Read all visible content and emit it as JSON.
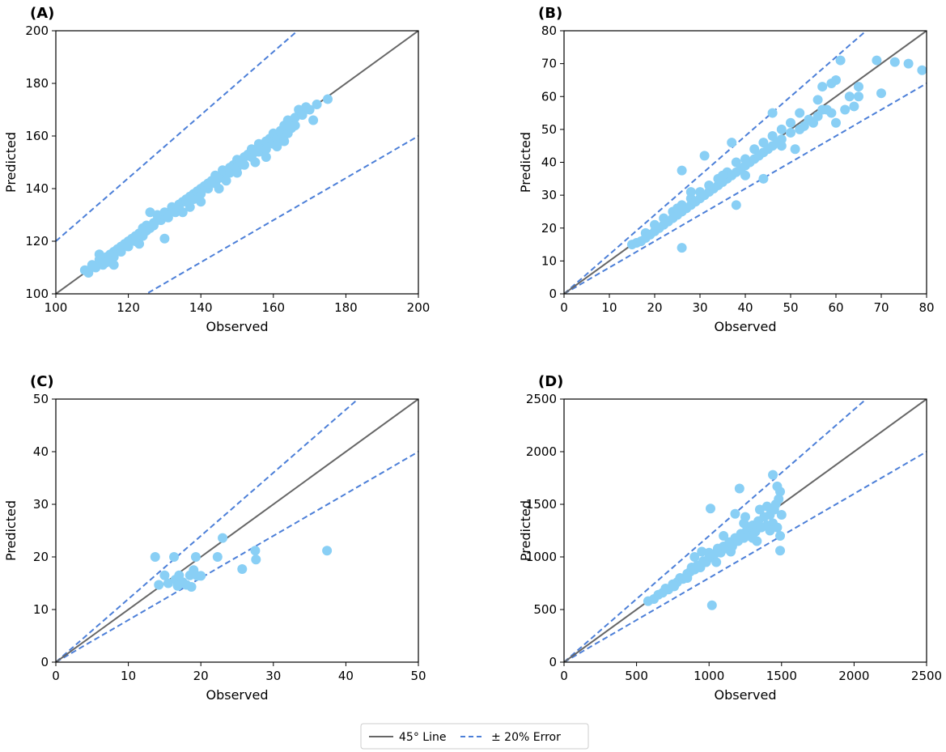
{
  "style": {
    "point_color": "#89CFF5",
    "identity_line_color": "#666666",
    "error_line_color": "#4C7FD8"
  },
  "legend": {
    "placement": "bottom-center",
    "items": [
      {
        "label": "45° Line",
        "style": "solid"
      },
      {
        "label": "± 20% Error",
        "style": "dashed"
      }
    ]
  },
  "chart_data": [
    {
      "type": "scatter",
      "panel_label": "(A)",
      "xlabel": "Observed",
      "ylabel": "Predicted",
      "xlim": [
        100,
        200
      ],
      "ylim": [
        100,
        200
      ],
      "xticks": [
        100,
        120,
        140,
        160,
        180,
        200
      ],
      "yticks": [
        100,
        120,
        140,
        160,
        180,
        200
      ],
      "reference_lines": {
        "identity_slope": 1,
        "upper_error_slope": 1.2,
        "lower_error_slope": 0.8
      },
      "points": [
        [
          108,
          109
        ],
        [
          109,
          108
        ],
        [
          110,
          111
        ],
        [
          111,
          110
        ],
        [
          112,
          113
        ],
        [
          113,
          111
        ],
        [
          114,
          114
        ],
        [
          114,
          112
        ],
        [
          115,
          115
        ],
        [
          116,
          114
        ],
        [
          116,
          116
        ],
        [
          117,
          117
        ],
        [
          118,
          116
        ],
        [
          118,
          118
        ],
        [
          119,
          119
        ],
        [
          120,
          118
        ],
        [
          120,
          120
        ],
        [
          121,
          121
        ],
        [
          122,
          120
        ],
        [
          122,
          122
        ],
        [
          123,
          123
        ],
        [
          124,
          122
        ],
        [
          124,
          125
        ],
        [
          125,
          124
        ],
        [
          125,
          126
        ],
        [
          126,
          125
        ],
        [
          127,
          127
        ],
        [
          127,
          126
        ],
        [
          128,
          128
        ],
        [
          128,
          130
        ],
        [
          129,
          128
        ],
        [
          130,
          130
        ],
        [
          130,
          131
        ],
        [
          131,
          129
        ],
        [
          132,
          132
        ],
        [
          132,
          133
        ],
        [
          133,
          131
        ],
        [
          134,
          134
        ],
        [
          134,
          133
        ],
        [
          135,
          135
        ],
        [
          136,
          135
        ],
        [
          136,
          136
        ],
        [
          137,
          137
        ],
        [
          138,
          136
        ],
        [
          138,
          138
        ],
        [
          139,
          139
        ],
        [
          140,
          138
        ],
        [
          140,
          140
        ],
        [
          141,
          141
        ],
        [
          142,
          140
        ],
        [
          142,
          142
        ],
        [
          143,
          143
        ],
        [
          144,
          142
        ],
        [
          144,
          145
        ],
        [
          145,
          144
        ],
        [
          146,
          145
        ],
        [
          146,
          147
        ],
        [
          147,
          146
        ],
        [
          148,
          148
        ],
        [
          148,
          146
        ],
        [
          149,
          149
        ],
        [
          150,
          148
        ],
        [
          150,
          151
        ],
        [
          151,
          150
        ],
        [
          152,
          152
        ],
        [
          152,
          149
        ],
        [
          153,
          153
        ],
        [
          154,
          152
        ],
        [
          154,
          155
        ],
        [
          155,
          154
        ],
        [
          156,
          154
        ],
        [
          156,
          157
        ],
        [
          157,
          155
        ],
        [
          158,
          158
        ],
        [
          158,
          155
        ],
        [
          159,
          159
        ],
        [
          160,
          157
        ],
        [
          160,
          161
        ],
        [
          161,
          159
        ],
        [
          162,
          162
        ],
        [
          162,
          159
        ],
        [
          163,
          164
        ],
        [
          164,
          161
        ],
        [
          164,
          166
        ],
        [
          165,
          163
        ],
        [
          166,
          167
        ],
        [
          166,
          164
        ],
        [
          167,
          170
        ],
        [
          168,
          168
        ],
        [
          169,
          171
        ],
        [
          170,
          170
        ],
        [
          171,
          166
        ],
        [
          172,
          172
        ],
        [
          175,
          174
        ],
        [
          130,
          121
        ],
        [
          120,
          119
        ],
        [
          123,
          119
        ],
        [
          140,
          135
        ],
        [
          150,
          146
        ],
        [
          155,
          150
        ],
        [
          135,
          131
        ],
        [
          145,
          140
        ],
        [
          126,
          131
        ],
        [
          112,
          115
        ],
        [
          116,
          111
        ],
        [
          161,
          156
        ],
        [
          158,
          152
        ],
        [
          147,
          143
        ],
        [
          137,
          133
        ],
        [
          163,
          158
        ]
      ]
    },
    {
      "type": "scatter",
      "panel_label": "(B)",
      "xlabel": "Observed",
      "ylabel": "Predicted",
      "xlim": [
        0,
        80
      ],
      "ylim": [
        0,
        80
      ],
      "xticks": [
        0,
        10,
        20,
        30,
        40,
        50,
        60,
        70,
        80
      ],
      "yticks": [
        0,
        10,
        20,
        30,
        40,
        50,
        60,
        70,
        80
      ],
      "reference_lines": {
        "identity_slope": 1,
        "upper_error_slope": 1.2,
        "lower_error_slope": 0.8
      },
      "points": [
        [
          15,
          15
        ],
        [
          16,
          15.5
        ],
        [
          17,
          16
        ],
        [
          18,
          17
        ],
        [
          18,
          18.5
        ],
        [
          19,
          18
        ],
        [
          20,
          19
        ],
        [
          20,
          21
        ],
        [
          21,
          20
        ],
        [
          22,
          21
        ],
        [
          22,
          23
        ],
        [
          23,
          22
        ],
        [
          24,
          23
        ],
        [
          24,
          25
        ],
        [
          25,
          24
        ],
        [
          25,
          26
        ],
        [
          26,
          25
        ],
        [
          26,
          27
        ],
        [
          27,
          26
        ],
        [
          28,
          27
        ],
        [
          28,
          29
        ],
        [
          29,
          28
        ],
        [
          30,
          29
        ],
        [
          30,
          31
        ],
        [
          31,
          30
        ],
        [
          32,
          31
        ],
        [
          32,
          33
        ],
        [
          33,
          32
        ],
        [
          34,
          33
        ],
        [
          34,
          35
        ],
        [
          35,
          34
        ],
        [
          36,
          35
        ],
        [
          36,
          37
        ],
        [
          37,
          36
        ],
        [
          38,
          37
        ],
        [
          38,
          40
        ],
        [
          39,
          38
        ],
        [
          40,
          39
        ],
        [
          40,
          41
        ],
        [
          41,
          40
        ],
        [
          42,
          41
        ],
        [
          42,
          44
        ],
        [
          43,
          42
        ],
        [
          44,
          43
        ],
        [
          44,
          46
        ],
        [
          45,
          44
        ],
        [
          46,
          45
        ],
        [
          46,
          48
        ],
        [
          47,
          46
        ],
        [
          48,
          47
        ],
        [
          48,
          50
        ],
        [
          50,
          49
        ],
        [
          50,
          52
        ],
        [
          52,
          50
        ],
        [
          52,
          55
        ],
        [
          53,
          51
        ],
        [
          54,
          53
        ],
        [
          55,
          52
        ],
        [
          56,
          54
        ],
        [
          57,
          56
        ],
        [
          58,
          56
        ],
        [
          59,
          55
        ],
        [
          60,
          52
        ],
        [
          60,
          65
        ],
        [
          61,
          71
        ],
        [
          62,
          56
        ],
        [
          63,
          60
        ],
        [
          64,
          57
        ],
        [
          65,
          60
        ],
        [
          65,
          63
        ],
        [
          70,
          61
        ],
        [
          69,
          71
        ],
        [
          73,
          70.5
        ],
        [
          76,
          70
        ],
        [
          79,
          68
        ],
        [
          26,
          14
        ],
        [
          38,
          27
        ],
        [
          26,
          37.5
        ],
        [
          31,
          42
        ],
        [
          35,
          36
        ],
        [
          40,
          36
        ],
        [
          44,
          35
        ],
        [
          46,
          55
        ],
        [
          48,
          45
        ],
        [
          51,
          44
        ],
        [
          56,
          59
        ],
        [
          57,
          63
        ],
        [
          59,
          64
        ],
        [
          37,
          46
        ],
        [
          28,
          31
        ]
      ]
    },
    {
      "type": "scatter",
      "panel_label": "(C)",
      "xlabel": "Observed",
      "ylabel": "Predicted",
      "xlim": [
        0,
        50
      ],
      "ylim": [
        0,
        50
      ],
      "xticks": [
        0,
        10,
        20,
        30,
        40,
        50
      ],
      "yticks": [
        0,
        10,
        20,
        30,
        40,
        50
      ],
      "reference_lines": {
        "identity_slope": 1,
        "upper_error_slope": 1.2,
        "lower_error_slope": 0.8
      },
      "points": [
        [
          13.7,
          20
        ],
        [
          14.2,
          14.7
        ],
        [
          15,
          16.5
        ],
        [
          15.5,
          15
        ],
        [
          16.3,
          20
        ],
        [
          16.5,
          15.7
        ],
        [
          16.8,
          14.5
        ],
        [
          17,
          16.5
        ],
        [
          17.5,
          15.2
        ],
        [
          18,
          14.7
        ],
        [
          18.5,
          16.5
        ],
        [
          18.7,
          14.3
        ],
        [
          19,
          17.5
        ],
        [
          19.3,
          20
        ],
        [
          19.5,
          16.4
        ],
        [
          20,
          16.4
        ],
        [
          22.3,
          20
        ],
        [
          23,
          23.6
        ],
        [
          25.7,
          17.7
        ],
        [
          27.5,
          21.2
        ],
        [
          27.6,
          19.5
        ],
        [
          37.4,
          21.2
        ]
      ]
    },
    {
      "type": "scatter",
      "panel_label": "(D)",
      "xlabel": "Observed",
      "ylabel": "Predicted",
      "xlim": [
        0,
        2500
      ],
      "ylim": [
        0,
        2500
      ],
      "xticks": [
        0,
        500,
        1000,
        1500,
        2000,
        2500
      ],
      "yticks": [
        0,
        500,
        1000,
        1500,
        2000,
        2500
      ],
      "reference_lines": {
        "identity_slope": 1,
        "upper_error_slope": 1.2,
        "lower_error_slope": 0.8
      },
      "points": [
        [
          580,
          580
        ],
        [
          620,
          600
        ],
        [
          650,
          640
        ],
        [
          680,
          660
        ],
        [
          700,
          700
        ],
        [
          720,
          690
        ],
        [
          750,
          740
        ],
        [
          780,
          760
        ],
        [
          800,
          800
        ],
        [
          820,
          790
        ],
        [
          850,
          840
        ],
        [
          870,
          860
        ],
        [
          880,
          900
        ],
        [
          900,
          880
        ],
        [
          920,
          920
        ],
        [
          940,
          900
        ],
        [
          960,
          960
        ],
        [
          980,
          950
        ],
        [
          1000,
          990
        ],
        [
          1000,
          1040
        ],
        [
          1020,
          1000
        ],
        [
          1040,
          1030
        ],
        [
          1060,
          1080
        ],
        [
          1080,
          1040
        ],
        [
          1100,
          1100
        ],
        [
          1120,
          1080
        ],
        [
          1140,
          1140
        ],
        [
          1160,
          1100
        ],
        [
          1180,
          1180
        ],
        [
          1200,
          1150
        ],
        [
          1220,
          1220
        ],
        [
          1240,
          1180
        ],
        [
          1260,
          1250
        ],
        [
          1280,
          1200
        ],
        [
          1300,
          1300
        ],
        [
          1320,
          1240
        ],
        [
          1340,
          1340
        ],
        [
          1360,
          1280
        ],
        [
          1380,
          1380
        ],
        [
          1400,
          1300
        ],
        [
          1420,
          1400
        ],
        [
          1440,
          1320
        ],
        [
          1450,
          1450
        ],
        [
          1460,
          1500
        ],
        [
          1470,
          1280
        ],
        [
          1480,
          1550
        ],
        [
          1490,
          1620
        ],
        [
          1490,
          1200
        ],
        [
          1470,
          1670
        ],
        [
          1500,
          1400
        ],
        [
          1440,
          1780
        ],
        [
          1210,
          1650
        ],
        [
          1010,
          1460
        ],
        [
          1020,
          540
        ],
        [
          1490,
          1060
        ],
        [
          1180,
          1410
        ],
        [
          1250,
          1380
        ],
        [
          1350,
          1450
        ],
        [
          1300,
          1180
        ],
        [
          1420,
          1250
        ],
        [
          900,
          1000
        ],
        [
          950,
          1050
        ],
        [
          1050,
          950
        ],
        [
          1150,
          1050
        ],
        [
          850,
          800
        ],
        [
          760,
          720
        ],
        [
          1330,
          1150
        ],
        [
          1400,
          1480
        ],
        [
          1100,
          1200
        ],
        [
          1240,
          1320
        ]
      ]
    }
  ]
}
